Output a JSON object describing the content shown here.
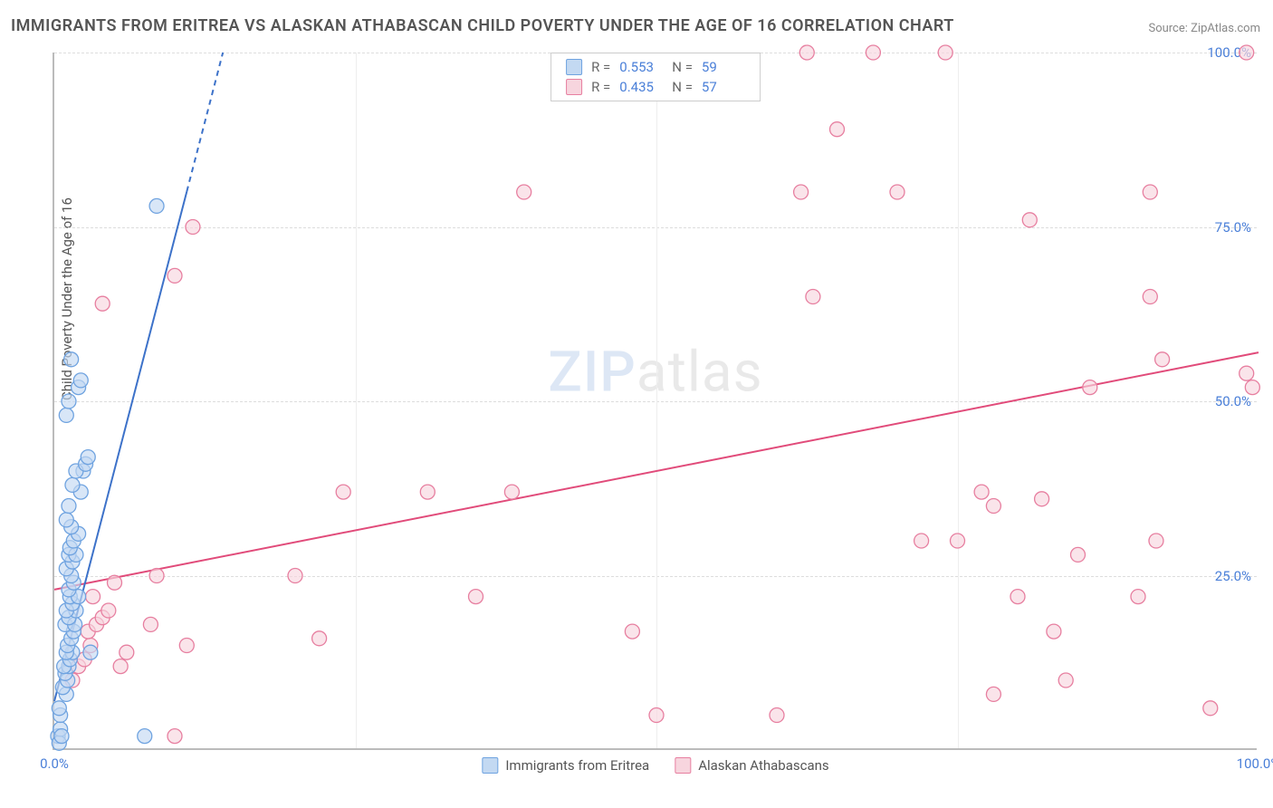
{
  "title": "IMMIGRANTS FROM ERITREA VS ALASKAN ATHABASCAN CHILD POVERTY UNDER THE AGE OF 16 CORRELATION CHART",
  "source": "Source: ZipAtlas.com",
  "y_axis_label": "Child Poverty Under the Age of 16",
  "watermark_a": "ZIP",
  "watermark_b": "atlas",
  "chart": {
    "type": "scatter",
    "xlim": [
      0,
      100
    ],
    "ylim": [
      0,
      100
    ],
    "x_ticks": [
      0,
      25,
      50,
      75,
      100
    ],
    "y_ticks": [
      25,
      50,
      75,
      100
    ],
    "x_tick_labels": [
      "0.0%",
      "",
      "",
      "",
      "100.0%"
    ],
    "y_tick_labels": [
      "25.0%",
      "50.0%",
      "75.0%",
      "100.0%"
    ],
    "grid_color": "#dddddd",
    "background_color": "#ffffff",
    "series": [
      {
        "name": "Immigrants from Eritrea",
        "color_fill": "#c3d9f2",
        "color_stroke": "#6fa3e0",
        "marker_radius": 8,
        "R": 0.553,
        "N": 59,
        "regression": {
          "x1": 0,
          "y1": 7,
          "x2": 14,
          "y2": 100,
          "dash_from_x": 11,
          "color": "#3d72c9",
          "width": 2
        },
        "points": [
          [
            0.3,
            2
          ],
          [
            0.4,
            1
          ],
          [
            0.5,
            3
          ],
          [
            0.6,
            2
          ],
          [
            0.5,
            5
          ],
          [
            0.4,
            6
          ],
          [
            1.0,
            8
          ],
          [
            0.7,
            9
          ],
          [
            1.1,
            10
          ],
          [
            0.9,
            11
          ],
          [
            1.2,
            12
          ],
          [
            0.8,
            12
          ],
          [
            1.3,
            13
          ],
          [
            1.5,
            14
          ],
          [
            1.0,
            14
          ],
          [
            1.1,
            15
          ],
          [
            1.4,
            16
          ],
          [
            1.6,
            17
          ],
          [
            0.9,
            18
          ],
          [
            1.7,
            18
          ],
          [
            1.2,
            19
          ],
          [
            1.8,
            20
          ],
          [
            1.0,
            20
          ],
          [
            1.5,
            21
          ],
          [
            1.3,
            22
          ],
          [
            2.0,
            22
          ],
          [
            1.2,
            23
          ],
          [
            1.6,
            24
          ],
          [
            1.4,
            25
          ],
          [
            1.0,
            26
          ],
          [
            1.5,
            27
          ],
          [
            1.2,
            28
          ],
          [
            1.8,
            28
          ],
          [
            1.3,
            29
          ],
          [
            1.6,
            30
          ],
          [
            2.0,
            31
          ],
          [
            1.4,
            32
          ],
          [
            1.0,
            33
          ],
          [
            1.2,
            35
          ],
          [
            2.2,
            37
          ],
          [
            1.5,
            38
          ],
          [
            2.4,
            40
          ],
          [
            1.8,
            40
          ],
          [
            2.6,
            41
          ],
          [
            2.8,
            42
          ],
          [
            1.0,
            48
          ],
          [
            1.2,
            50
          ],
          [
            2.0,
            52
          ],
          [
            2.2,
            53
          ],
          [
            1.4,
            56
          ],
          [
            8.5,
            78
          ],
          [
            7.5,
            2
          ],
          [
            3.0,
            14
          ]
        ]
      },
      {
        "name": "Alaskan Athabascans",
        "color_fill": "#f7d5de",
        "color_stroke": "#e77fa0",
        "marker_radius": 8,
        "R": 0.435,
        "N": 57,
        "regression": {
          "x1": 0,
          "y1": 23,
          "x2": 100,
          "y2": 57,
          "color": "#e14b7a",
          "width": 2
        },
        "points": [
          [
            1.5,
            10
          ],
          [
            2.0,
            12
          ],
          [
            2.5,
            13
          ],
          [
            3.0,
            15
          ],
          [
            2.8,
            17
          ],
          [
            3.5,
            18
          ],
          [
            4.0,
            19
          ],
          [
            4.5,
            20
          ],
          [
            3.2,
            22
          ],
          [
            5.0,
            24
          ],
          [
            8.0,
            18
          ],
          [
            10.0,
            2
          ],
          [
            11.0,
            15
          ],
          [
            8.5,
            25
          ],
          [
            22.0,
            16
          ],
          [
            20.0,
            25
          ],
          [
            24.0,
            37
          ],
          [
            31.0,
            37
          ],
          [
            35.0,
            22
          ],
          [
            38.0,
            37
          ],
          [
            48.0,
            17
          ],
          [
            50.0,
            5
          ],
          [
            39.0,
            80
          ],
          [
            60.0,
            5
          ],
          [
            62.0,
            80
          ],
          [
            63.0,
            65
          ],
          [
            62.5,
            100
          ],
          [
            68.0,
            100
          ],
          [
            65.0,
            89
          ],
          [
            74.0,
            100
          ],
          [
            70.0,
            80
          ],
          [
            72.0,
            30
          ],
          [
            78.0,
            8
          ],
          [
            75.0,
            30
          ],
          [
            77.0,
            37
          ],
          [
            78.0,
            35
          ],
          [
            80.0,
            22
          ],
          [
            83.0,
            17
          ],
          [
            82.0,
            36
          ],
          [
            84.0,
            10
          ],
          [
            85.0,
            28
          ],
          [
            81.0,
            76
          ],
          [
            86.0,
            52
          ],
          [
            90.0,
            22
          ],
          [
            91.0,
            65
          ],
          [
            91.5,
            30
          ],
          [
            92.0,
            56
          ],
          [
            91.0,
            80
          ],
          [
            96.0,
            6
          ],
          [
            99.0,
            100
          ],
          [
            99.5,
            52
          ],
          [
            99.0,
            54
          ],
          [
            4.0,
            64
          ],
          [
            10.0,
            68
          ],
          [
            11.5,
            75
          ],
          [
            5.5,
            12
          ],
          [
            6.0,
            14
          ]
        ]
      }
    ]
  }
}
